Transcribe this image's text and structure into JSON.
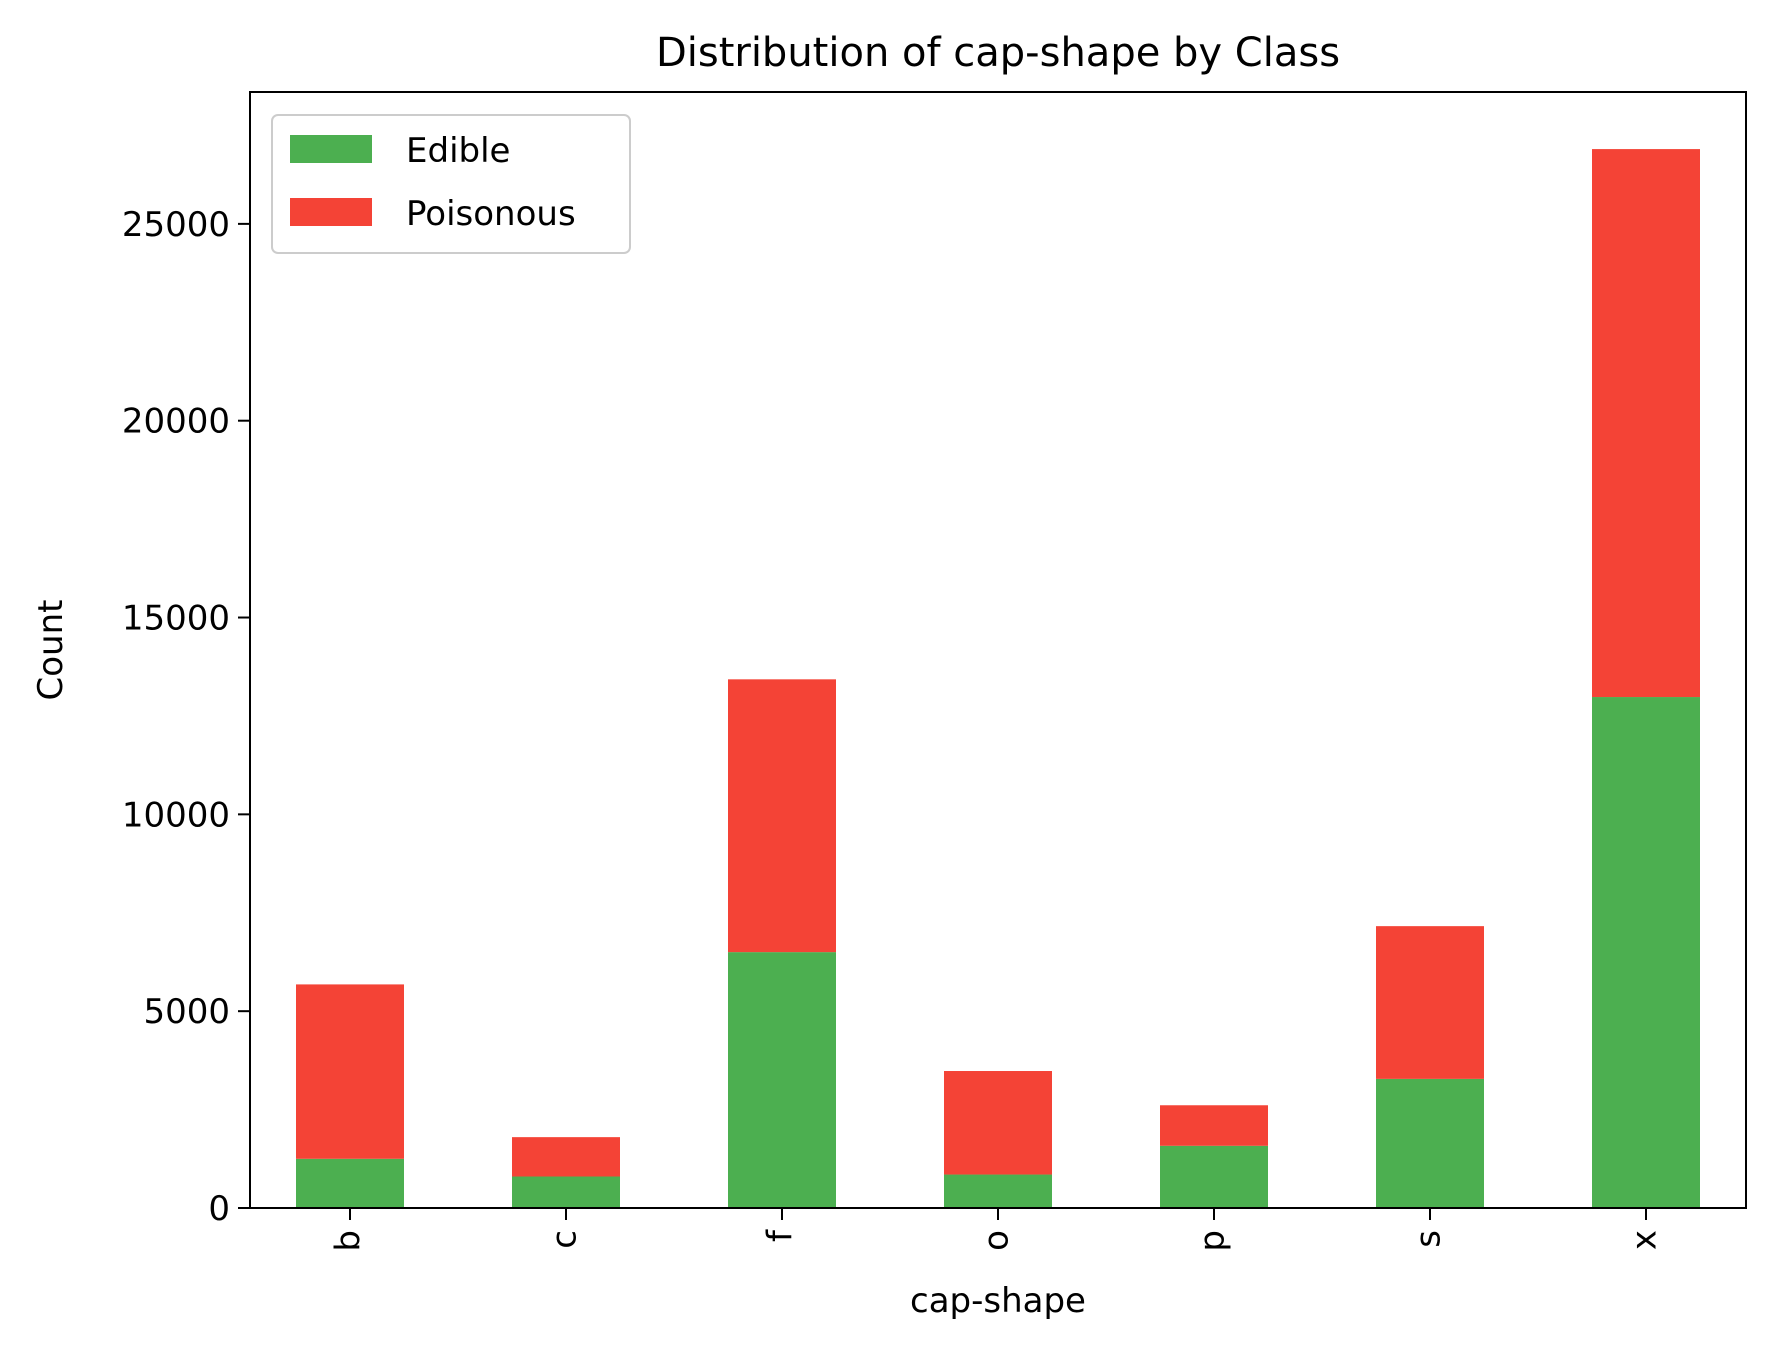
{
  "chart_data": {
    "type": "bar",
    "stacked": true,
    "title": "Distribution of cap-shape by Class",
    "xlabel": "cap-shape",
    "ylabel": "Count",
    "categories": [
      "b",
      "c",
      "f",
      "o",
      "p",
      "s",
      "x"
    ],
    "series": [
      {
        "name": "Edible",
        "color": "#4caf50",
        "values": [
          1250,
          800,
          6500,
          850,
          1580,
          3280,
          12980
        ]
      },
      {
        "name": "Poisonous",
        "color": "#f44336",
        "values": [
          4430,
          1000,
          6930,
          2630,
          1030,
          3880,
          13920
        ]
      }
    ],
    "yticks": [
      0,
      5000,
      10000,
      15000,
      20000,
      25000
    ],
    "ylim": [
      0,
      28350
    ],
    "legend": {
      "position": "top-left"
    },
    "grid": false
  }
}
